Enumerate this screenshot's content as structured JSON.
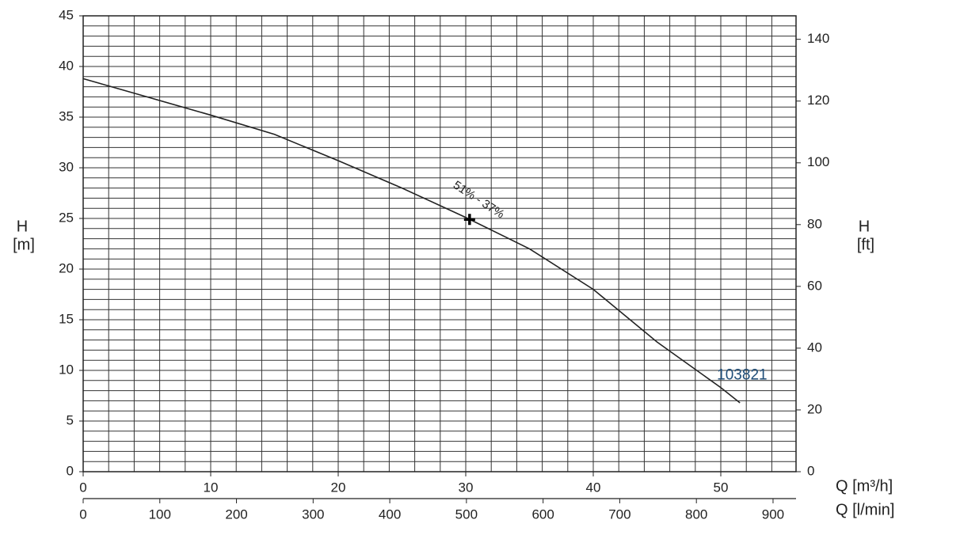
{
  "chart_data": {
    "type": "line",
    "ylabel": {
      "name": "H",
      "unit": "[m]"
    },
    "y2label": {
      "name": "H",
      "unit": "[ft]"
    },
    "xlabel": "Q [m³/h]",
    "x2label": "Q [l/min]",
    "xlim": [
      0,
      55.9
    ],
    "xticks": [
      0,
      10,
      20,
      30,
      40,
      50
    ],
    "x2lim": [
      0,
      930
    ],
    "x2ticks": [
      0,
      100,
      200,
      300,
      400,
      500,
      600,
      700,
      800,
      900
    ],
    "ylim": [
      0,
      45
    ],
    "yticks": [
      0,
      5,
      10,
      15,
      20,
      25,
      30,
      35,
      40,
      45
    ],
    "y2lim": [
      0,
      147.6
    ],
    "y2ticks": [
      0,
      20,
      40,
      60,
      80,
      100,
      120,
      140
    ],
    "xgrid": [
      2,
      4,
      6,
      8,
      10,
      12,
      14,
      16,
      18,
      20,
      22,
      24,
      26,
      28,
      30,
      32,
      34,
      36,
      38,
      40,
      42,
      44,
      46,
      48,
      50,
      52,
      54
    ],
    "ygrid": [
      1,
      2,
      3,
      4,
      5,
      6,
      7,
      8,
      9,
      10,
      11,
      12,
      13,
      14,
      15,
      16,
      17,
      18,
      19,
      20,
      21,
      22,
      23,
      24,
      25,
      26,
      27,
      28,
      29,
      30,
      31,
      32,
      33,
      34,
      35,
      36,
      37,
      38,
      39,
      40,
      41,
      42,
      43,
      44
    ],
    "grid": true,
    "series": [
      {
        "color": "#222222",
        "x": [
          0,
          5,
          10,
          15,
          20,
          25,
          30,
          35,
          40,
          45,
          50,
          51.5
        ],
        "values": [
          38.8,
          37.0,
          35.2,
          33.3,
          30.7,
          28.0,
          25.1,
          22.0,
          18.0,
          12.8,
          8.3,
          6.8
        ]
      }
    ],
    "point": {
      "x": 30.3,
      "y": 24.9
    },
    "annotations": [
      {
        "text": "51% - 37%",
        "x": 31,
        "y": 26.8
      },
      {
        "text": "103821",
        "x": 49.7,
        "y": 9.5
      }
    ]
  }
}
